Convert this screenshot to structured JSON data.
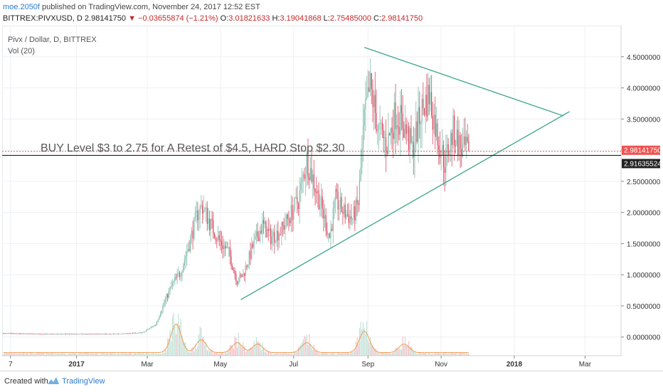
{
  "header": {
    "author": "moe.2050f",
    "published": "published on TradingView.com, November 24, 2017 12:52 EST",
    "symbol": "BITTREX:PIVXUSD, D",
    "price": "2.98141750",
    "change": "▼ −0.03655874 (−1.21%)",
    "ohlc_o_label": "O:",
    "ohlc_o": "3.01821633",
    "ohlc_h_label": "H:",
    "ohlc_h": "3.19041868",
    "ohlc_l_label": "L:",
    "ohlc_l": "2.75485000",
    "ohlc_c_label": "C:",
    "ohlc_c": "2.98141750"
  },
  "legend": {
    "title": "Pivx / Dollar, D, BITTREX",
    "volume": "Vol (20)"
  },
  "footer": {
    "created_with": "Created with",
    "brand": "TradingView"
  },
  "colors": {
    "up": "#7ab8a8",
    "down": "#d93d55",
    "up_vol": "#a8d5c7",
    "down_vol": "#f0a4b0",
    "trendline": "#3aa58a",
    "vol_ma": "#f29a4a",
    "price_badge": "#ef5350",
    "horizontal_line": "#222222",
    "grid": "#eef0f3"
  },
  "chart_data": {
    "type": "candlestick",
    "title": "Pivx / Dollar, D, BITTREX",
    "y_ticks": [
      "4.50000000",
      "4.00000000",
      "3.50000000",
      "3.00000000",
      "2.50000000",
      "2.00000000",
      "1.50000000",
      "1.00000000",
      "0.50000000",
      "0.00000000"
    ],
    "y_tick_values": [
      4.5,
      4.0,
      3.5,
      3.0,
      2.5,
      2.0,
      1.5,
      1.0,
      0.5,
      0.0
    ],
    "ylim": [
      -0.3,
      5.0
    ],
    "x_ticks": [
      "7",
      "2017",
      "Mar",
      "May",
      "Jul",
      "Sep",
      "Nov",
      "2018",
      "Mar"
    ],
    "x_tick_dates": [
      "2016-11-07",
      "2017-01-01",
      "2017-03-01",
      "2017-05-01",
      "2017-07-01",
      "2017-09-01",
      "2017-11-01",
      "2018-01-01",
      "2018-03-01"
    ],
    "xlim": [
      "2016-10-31",
      "2018-03-31"
    ],
    "last_price_label": "2.98141750",
    "last_price": 2.9814175,
    "horizontal_level_label": "2.91635524",
    "horizontal_level": 2.91635524,
    "annotation": "BUY Level $3 to 2.75 for A Retest of $4.5, HARD Stop $2.30",
    "trendlines": [
      {
        "name": "",
        "points": [
          [
            "2017-05-18",
            0.6
          ],
          [
            "2018-02-16",
            3.62
          ]
        ]
      },
      {
        "name": "",
        "points": [
          [
            "2017-08-29",
            4.65
          ],
          [
            "2018-02-11",
            3.55
          ]
        ]
      }
    ],
    "price_path": [
      [
        "2016-11-01",
        0.06
      ],
      [
        "2016-12-01",
        0.05
      ],
      [
        "2017-01-01",
        0.05
      ],
      [
        "2017-02-01",
        0.05
      ],
      [
        "2017-02-25",
        0.07
      ],
      [
        "2017-03-08",
        0.2
      ],
      [
        "2017-03-15",
        0.55
      ],
      [
        "2017-03-22",
        0.85
      ],
      [
        "2017-03-29",
        1.05
      ],
      [
        "2017-04-05",
        1.5
      ],
      [
        "2017-04-12",
        2.0
      ],
      [
        "2017-04-16",
        2.1
      ],
      [
        "2017-04-23",
        1.8
      ],
      [
        "2017-04-30",
        1.55
      ],
      [
        "2017-05-08",
        1.35
      ],
      [
        "2017-05-15",
        0.9
      ],
      [
        "2017-05-20",
        1.0
      ],
      [
        "2017-05-28",
        1.45
      ],
      [
        "2017-06-05",
        1.8
      ],
      [
        "2017-06-12",
        1.6
      ],
      [
        "2017-06-20",
        1.7
      ],
      [
        "2017-06-28",
        1.95
      ],
      [
        "2017-07-05",
        2.2
      ],
      [
        "2017-07-12",
        2.85
      ],
      [
        "2017-07-17",
        2.55
      ],
      [
        "2017-07-24",
        2.1
      ],
      [
        "2017-07-31",
        1.6
      ],
      [
        "2017-08-05",
        2.2
      ],
      [
        "2017-08-12",
        2.0
      ],
      [
        "2017-08-19",
        1.9
      ],
      [
        "2017-08-24",
        2.15
      ],
      [
        "2017-08-29",
        3.5
      ],
      [
        "2017-09-03",
        4.0
      ],
      [
        "2017-09-10",
        3.3
      ],
      [
        "2017-09-17",
        3.1
      ],
      [
        "2017-09-24",
        3.6
      ],
      [
        "2017-10-01",
        3.4
      ],
      [
        "2017-10-08",
        3.0
      ],
      [
        "2017-10-15",
        3.6
      ],
      [
        "2017-10-22",
        3.9
      ],
      [
        "2017-10-28",
        3.3
      ],
      [
        "2017-11-04",
        2.8
      ],
      [
        "2017-11-11",
        3.3
      ],
      [
        "2017-11-18",
        3.0
      ],
      [
        "2017-11-24",
        2.98
      ]
    ],
    "volume": {
      "name": "Vol (20)",
      "bursts": [
        [
          "2017-03-25",
          1.0
        ],
        [
          "2017-04-15",
          0.45
        ],
        [
          "2017-05-15",
          0.35
        ],
        [
          "2017-06-01",
          0.3
        ],
        [
          "2017-07-12",
          0.35
        ],
        [
          "2017-08-29",
          0.75
        ],
        [
          "2017-10-01",
          0.3
        ]
      ]
    }
  }
}
